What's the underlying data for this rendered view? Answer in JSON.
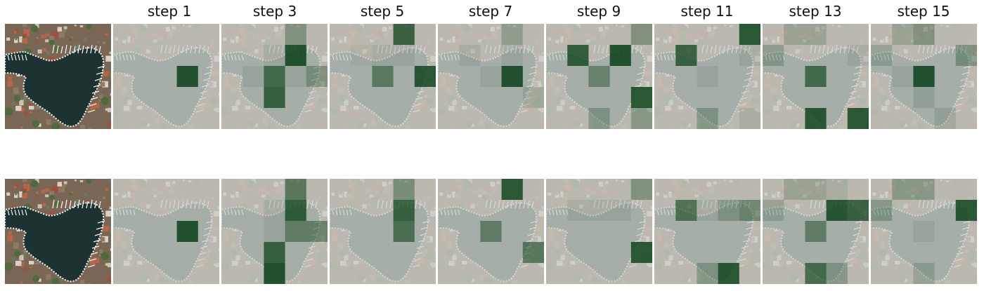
{
  "steps": [
    "step 1",
    "step 3",
    "step 5",
    "step 7",
    "step 9",
    "step 11",
    "step 13",
    "step 15"
  ],
  "colors": {
    "background": "#ffffff",
    "attention": "#12461f",
    "water_faded": "#b9bdb5",
    "water_original": "#1d3331",
    "land_original": "#7a6654"
  },
  "grid_size": 5,
  "rows": [
    {
      "name": "row-1",
      "steps": [
        [
          [
            0,
            0,
            0,
            0,
            0
          ],
          [
            0,
            0,
            0,
            0,
            0
          ],
          [
            0,
            0,
            0,
            0.95,
            0
          ],
          [
            0,
            0,
            0,
            0,
            0
          ],
          [
            0,
            0,
            0,
            0,
            0
          ]
        ],
        [
          [
            0,
            0,
            0,
            0.35,
            0
          ],
          [
            0,
            0,
            0.1,
            0.95,
            0
          ],
          [
            0,
            0.1,
            0.7,
            0.1,
            0.35
          ],
          [
            0,
            0,
            0.8,
            0,
            0
          ],
          [
            0,
            0,
            0,
            0,
            0
          ]
        ],
        [
          [
            0,
            0,
            0,
            0.8,
            0
          ],
          [
            0,
            0.05,
            0.1,
            0.1,
            0
          ],
          [
            0,
            0,
            0.55,
            0,
            0.9
          ],
          [
            0,
            0,
            0,
            0,
            0
          ],
          [
            0,
            0,
            0,
            0,
            0
          ]
        ],
        [
          [
            0,
            0,
            0,
            0.25,
            0
          ],
          [
            0,
            0.1,
            0,
            0.1,
            0
          ],
          [
            0,
            0,
            0.1,
            0.95,
            0
          ],
          [
            0,
            0,
            0,
            0,
            0.15
          ],
          [
            0,
            0,
            0,
            0,
            0
          ]
        ],
        [
          [
            0,
            0,
            0,
            0,
            0.35
          ],
          [
            0,
            0.85,
            0,
            0.95,
            0
          ],
          [
            0,
            0,
            0.45,
            0,
            0
          ],
          [
            0,
            0,
            0,
            0,
            0.9
          ],
          [
            0,
            0,
            0.3,
            0,
            0.3
          ]
        ],
        [
          [
            0,
            0,
            0,
            0,
            0.9
          ],
          [
            0,
            0.8,
            0,
            0,
            0.1
          ],
          [
            0,
            0,
            0.1,
            0,
            0
          ],
          [
            0,
            0,
            0,
            0,
            0
          ],
          [
            0,
            0,
            0.3,
            0,
            0.1
          ]
        ],
        [
          [
            0,
            0.2,
            0.2,
            0,
            0
          ],
          [
            0.25,
            0,
            0,
            0,
            0.1
          ],
          [
            0,
            0,
            0.7,
            0,
            0
          ],
          [
            0,
            0,
            0,
            0,
            0
          ],
          [
            0,
            0,
            0.9,
            0,
            0.9
          ]
        ],
        [
          [
            0,
            0.2,
            0.35,
            0,
            0
          ],
          [
            0.2,
            0,
            0,
            0,
            0.35
          ],
          [
            0,
            0.1,
            0.95,
            0,
            0
          ],
          [
            0,
            0,
            0.15,
            0,
            0
          ],
          [
            0,
            0,
            0,
            0.15,
            0
          ]
        ]
      ]
    },
    {
      "name": "row-2",
      "steps": [
        [
          [
            0,
            0,
            0,
            0,
            0
          ],
          [
            0,
            0,
            0,
            0,
            0
          ],
          [
            0,
            0,
            0,
            0.95,
            0
          ],
          [
            0,
            0,
            0,
            0,
            0
          ],
          [
            0,
            0,
            0,
            0,
            0
          ]
        ],
        [
          [
            0,
            0,
            0,
            0.6,
            0
          ],
          [
            0,
            0,
            0.1,
            0.85,
            0
          ],
          [
            0,
            0,
            0.1,
            0.5,
            0.5
          ],
          [
            0,
            0,
            0.8,
            0,
            0
          ],
          [
            0,
            0,
            0.95,
            0,
            0
          ]
        ],
        [
          [
            0,
            0,
            0,
            0.4,
            0
          ],
          [
            0,
            0,
            0,
            0.8,
            0
          ],
          [
            0,
            0,
            0,
            0.65,
            0
          ],
          [
            0,
            0,
            0,
            0,
            0
          ],
          [
            0,
            0,
            0,
            0,
            0
          ]
        ],
        [
          [
            0,
            0,
            0,
            0.9,
            0
          ],
          [
            0,
            0,
            0,
            0,
            0
          ],
          [
            0,
            0,
            0.5,
            0,
            0
          ],
          [
            0,
            0,
            0,
            0,
            0.6
          ],
          [
            0,
            0,
            0,
            0,
            0
          ]
        ],
        [
          [
            0,
            0,
            0,
            0,
            0.35
          ],
          [
            0,
            0.1,
            0.1,
            0.1,
            0
          ],
          [
            0,
            0,
            0,
            0,
            0
          ],
          [
            0,
            0,
            0,
            0,
            0.9
          ],
          [
            0,
            0,
            0,
            0,
            0
          ]
        ],
        [
          [
            0,
            0,
            0,
            0,
            0
          ],
          [
            0,
            0.65,
            0.1,
            0.3,
            0.45
          ],
          [
            0,
            0,
            0,
            0,
            0
          ],
          [
            0,
            0,
            0,
            0,
            0
          ],
          [
            0,
            0,
            0.3,
            0.9,
            0
          ]
        ],
        [
          [
            0,
            0.2,
            0.2,
            0.1,
            0
          ],
          [
            0.2,
            0,
            0,
            0.9,
            0.8
          ],
          [
            0,
            0,
            0.5,
            0,
            0
          ],
          [
            0,
            0,
            0,
            0,
            0
          ],
          [
            0,
            0,
            0.7,
            0.3,
            0
          ]
        ],
        [
          [
            0,
            0.3,
            0.3,
            0,
            0
          ],
          [
            0.3,
            0,
            0,
            0,
            0.9
          ],
          [
            0,
            0,
            0.1,
            0,
            0
          ],
          [
            0,
            0,
            0,
            0,
            0
          ],
          [
            0,
            0,
            0.2,
            0,
            0
          ]
        ]
      ]
    }
  ]
}
